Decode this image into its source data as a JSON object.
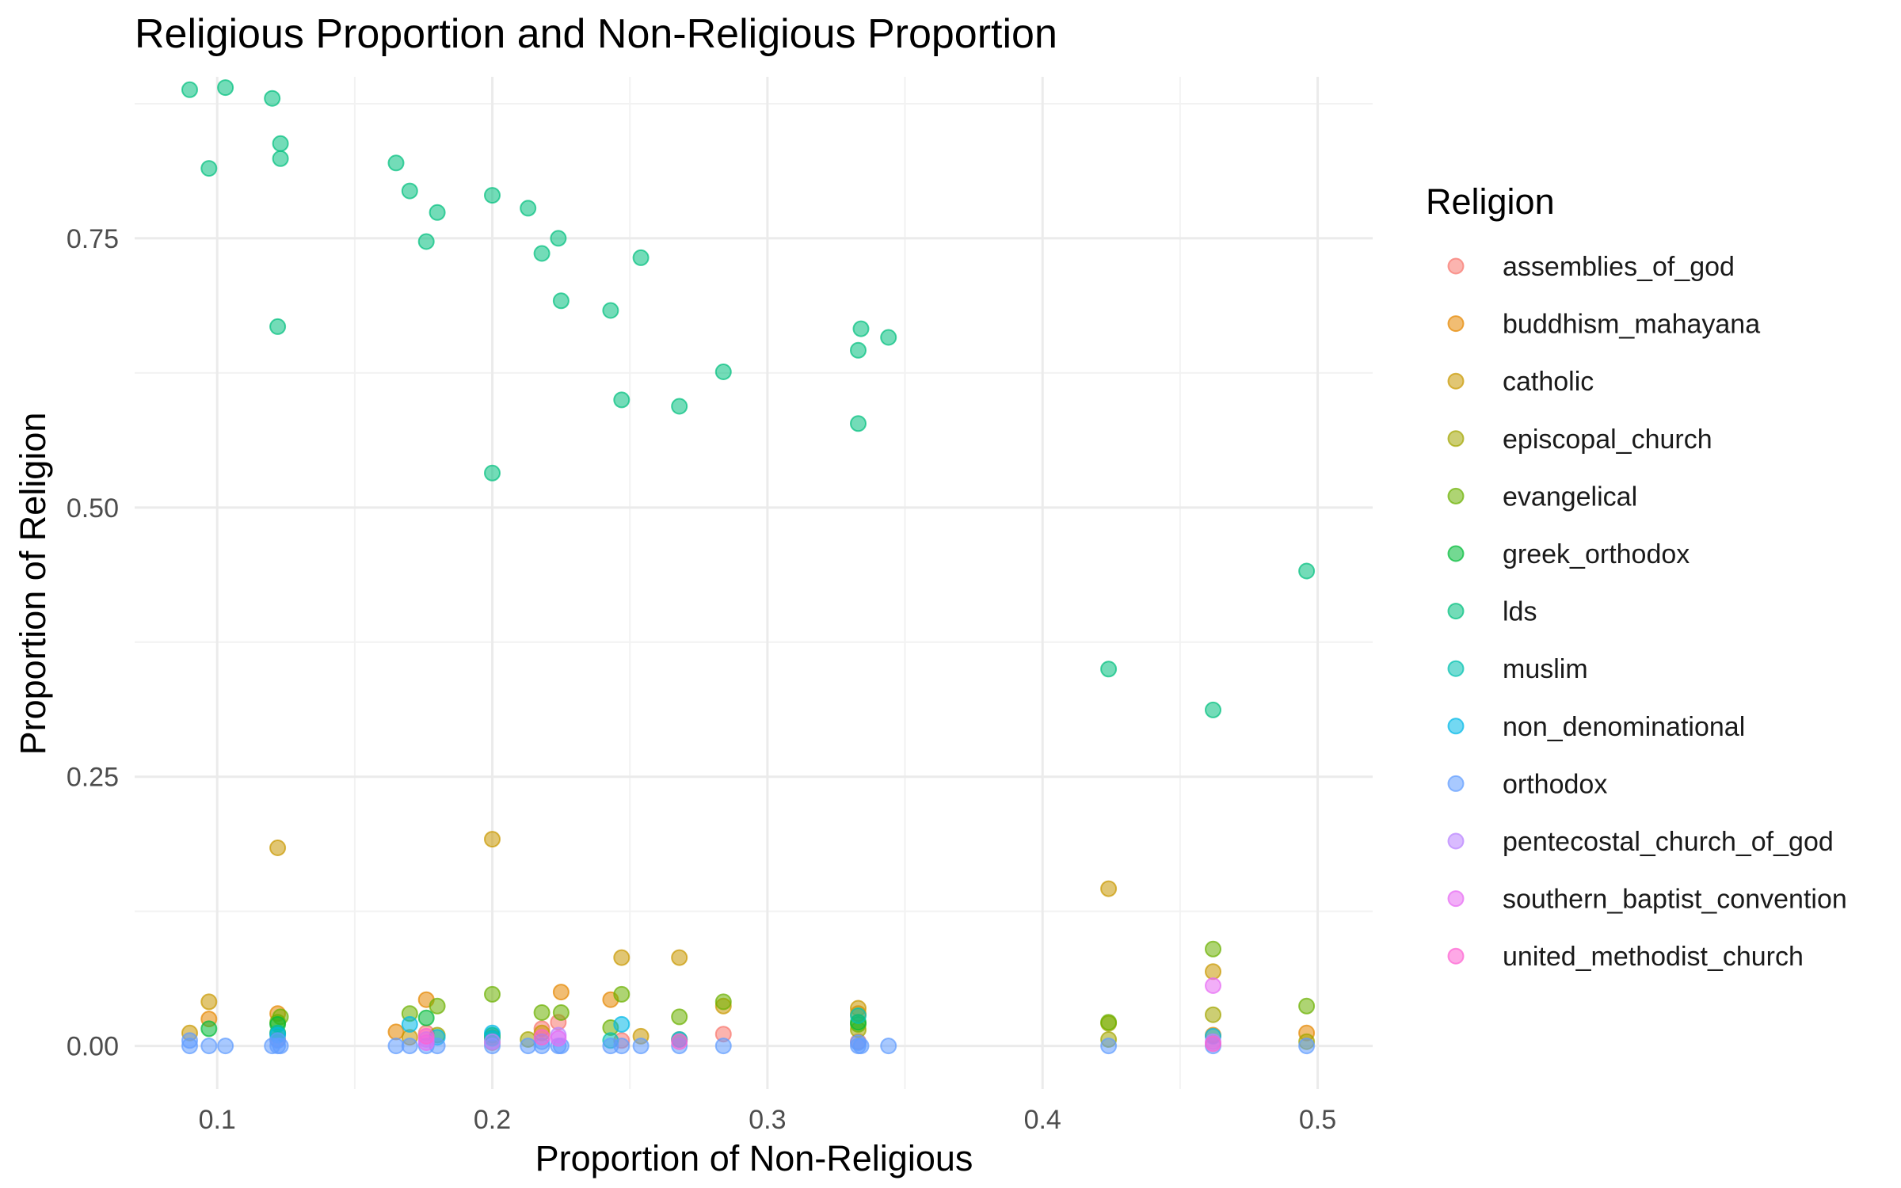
{
  "chart_data": {
    "type": "scatter",
    "title": "Religious Proportion and Non-Religious Proportion",
    "xlabel": "Proportion of Non-Religious",
    "ylabel": "Proportion of Religion",
    "xlim": [
      0.07,
      0.52
    ],
    "ylim": [
      -0.04,
      0.9
    ],
    "x_ticks": [
      {
        "value": 0.1,
        "label": "0.1"
      },
      {
        "value": 0.2,
        "label": "0.2"
      },
      {
        "value": 0.3,
        "label": "0.3"
      },
      {
        "value": 0.4,
        "label": "0.4"
      },
      {
        "value": 0.5,
        "label": "0.5"
      }
    ],
    "y_ticks": [
      {
        "value": 0.0,
        "label": "0.00"
      },
      {
        "value": 0.25,
        "label": "0.25"
      },
      {
        "value": 0.5,
        "label": "0.50"
      },
      {
        "value": 0.75,
        "label": "0.75"
      }
    ],
    "grid": true,
    "legend": {
      "title": "Religion",
      "position": "right"
    },
    "series": [
      {
        "name": "assemblies_of_god",
        "color": "#F8766D",
        "points": [
          [
            0.218,
            0.016
          ],
          [
            0.176,
            0.012
          ],
          [
            0.284,
            0.011
          ],
          [
            0.224,
            0.022
          ],
          [
            0.333,
            0.004
          ],
          [
            0.247,
            0.005
          ],
          [
            0.122,
            0.006
          ],
          [
            0.2,
            0.003
          ]
        ]
      },
      {
        "name": "buddhism_mahayana",
        "color": "#E58700",
        "points": [
          [
            0.097,
            0.025
          ],
          [
            0.122,
            0.03
          ],
          [
            0.176,
            0.043
          ],
          [
            0.243,
            0.043
          ],
          [
            0.225,
            0.05
          ],
          [
            0.333,
            0.03
          ],
          [
            0.496,
            0.012
          ],
          [
            0.462,
            0.01
          ],
          [
            0.165,
            0.013
          ],
          [
            0.2,
            0.008
          ]
        ]
      },
      {
        "name": "catholic",
        "color": "#C99800",
        "points": [
          [
            0.122,
            0.184
          ],
          [
            0.2,
            0.192
          ],
          [
            0.424,
            0.146
          ],
          [
            0.247,
            0.082
          ],
          [
            0.268,
            0.082
          ],
          [
            0.462,
            0.069
          ],
          [
            0.097,
            0.041
          ],
          [
            0.333,
            0.035
          ],
          [
            0.284,
            0.037
          ],
          [
            0.09,
            0.012
          ],
          [
            0.17,
            0.008
          ],
          [
            0.254,
            0.009
          ],
          [
            0.218,
            0.012
          ]
        ]
      },
      {
        "name": "episcopal_church",
        "color": "#A3A500",
        "points": [
          [
            0.462,
            0.029
          ],
          [
            0.424,
            0.021
          ],
          [
            0.333,
            0.015
          ],
          [
            0.18,
            0.01
          ],
          [
            0.122,
            0.012
          ],
          [
            0.213,
            0.006
          ],
          [
            0.268,
            0.006
          ],
          [
            0.424,
            0.006
          ],
          [
            0.496,
            0.004
          ]
        ]
      },
      {
        "name": "evangelical",
        "color": "#6BB100",
        "points": [
          [
            0.462,
            0.09
          ],
          [
            0.496,
            0.037
          ],
          [
            0.2,
            0.048
          ],
          [
            0.247,
            0.048
          ],
          [
            0.284,
            0.041
          ],
          [
            0.18,
            0.037
          ],
          [
            0.17,
            0.03
          ],
          [
            0.218,
            0.031
          ],
          [
            0.225,
            0.031
          ],
          [
            0.268,
            0.027
          ],
          [
            0.123,
            0.027
          ],
          [
            0.122,
            0.022
          ],
          [
            0.424,
            0.022
          ],
          [
            0.333,
            0.02
          ],
          [
            0.243,
            0.017
          ]
        ]
      },
      {
        "name": "greek_orthodox",
        "color": "#00BA38",
        "points": [
          [
            0.097,
            0.016
          ],
          [
            0.176,
            0.026
          ],
          [
            0.333,
            0.022
          ],
          [
            0.122,
            0.02
          ],
          [
            0.2,
            0.01
          ]
        ]
      },
      {
        "name": "lds",
        "color": "#00BF7D",
        "points": [
          [
            0.09,
            0.888
          ],
          [
            0.103,
            0.89
          ],
          [
            0.12,
            0.88
          ],
          [
            0.097,
            0.815
          ],
          [
            0.123,
            0.838
          ],
          [
            0.123,
            0.824
          ],
          [
            0.165,
            0.82
          ],
          [
            0.17,
            0.794
          ],
          [
            0.2,
            0.79
          ],
          [
            0.18,
            0.774
          ],
          [
            0.213,
            0.778
          ],
          [
            0.176,
            0.747
          ],
          [
            0.224,
            0.75
          ],
          [
            0.218,
            0.736
          ],
          [
            0.254,
            0.732
          ],
          [
            0.225,
            0.692
          ],
          [
            0.243,
            0.683
          ],
          [
            0.122,
            0.668
          ],
          [
            0.334,
            0.666
          ],
          [
            0.344,
            0.658
          ],
          [
            0.333,
            0.646
          ],
          [
            0.284,
            0.626
          ],
          [
            0.247,
            0.6
          ],
          [
            0.268,
            0.594
          ],
          [
            0.333,
            0.578
          ],
          [
            0.2,
            0.532
          ],
          [
            0.496,
            0.441
          ],
          [
            0.424,
            0.35
          ],
          [
            0.462,
            0.312
          ]
        ]
      },
      {
        "name": "muslim",
        "color": "#00C0AF",
        "points": [
          [
            0.333,
            0.028
          ],
          [
            0.122,
            0.012
          ],
          [
            0.2,
            0.007
          ],
          [
            0.243,
            0.005
          ]
        ]
      },
      {
        "name": "non_denominational",
        "color": "#00B8E7",
        "points": [
          [
            0.247,
            0.02
          ],
          [
            0.17,
            0.02
          ],
          [
            0.2,
            0.012
          ],
          [
            0.122,
            0.01
          ],
          [
            0.18,
            0.008
          ],
          [
            0.268,
            0.006
          ],
          [
            0.462,
            0.009
          ]
        ]
      },
      {
        "name": "orthodox",
        "color": "#619CFF",
        "points": [
          [
            0.09,
            0.0
          ],
          [
            0.097,
            0.0
          ],
          [
            0.103,
            0.0
          ],
          [
            0.12,
            0.0
          ],
          [
            0.122,
            0.0
          ],
          [
            0.123,
            0.0
          ],
          [
            0.165,
            0.0
          ],
          [
            0.17,
            0.0
          ],
          [
            0.176,
            0.0
          ],
          [
            0.18,
            0.0
          ],
          [
            0.2,
            0.0
          ],
          [
            0.213,
            0.0
          ],
          [
            0.218,
            0.0
          ],
          [
            0.224,
            0.0
          ],
          [
            0.225,
            0.0
          ],
          [
            0.243,
            0.0
          ],
          [
            0.247,
            0.0
          ],
          [
            0.254,
            0.0
          ],
          [
            0.268,
            0.0
          ],
          [
            0.284,
            0.0
          ],
          [
            0.333,
            0.0
          ],
          [
            0.334,
            0.0
          ],
          [
            0.344,
            0.0
          ],
          [
            0.424,
            0.0
          ],
          [
            0.462,
            0.0
          ],
          [
            0.496,
            0.0
          ],
          [
            0.09,
            0.005
          ],
          [
            0.122,
            0.005
          ],
          [
            0.218,
            0.004
          ],
          [
            0.333,
            0.003
          ]
        ]
      },
      {
        "name": "pentecostal_church_of_god",
        "color": "#B983FF",
        "points": [
          [
            0.224,
            0.01
          ],
          [
            0.176,
            0.006
          ],
          [
            0.462,
            0.004
          ],
          [
            0.2,
            0.004
          ]
        ]
      },
      {
        "name": "southern_baptist_convention",
        "color": "#E76BF3",
        "points": [
          [
            0.462,
            0.056
          ],
          [
            0.224,
            0.007
          ],
          [
            0.176,
            0.003
          ]
        ]
      },
      {
        "name": "united_methodist_church",
        "color": "#FD61D1",
        "points": [
          [
            0.218,
            0.008
          ],
          [
            0.176,
            0.009
          ],
          [
            0.268,
            0.004
          ],
          [
            0.462,
            0.002
          ]
        ]
      }
    ]
  }
}
